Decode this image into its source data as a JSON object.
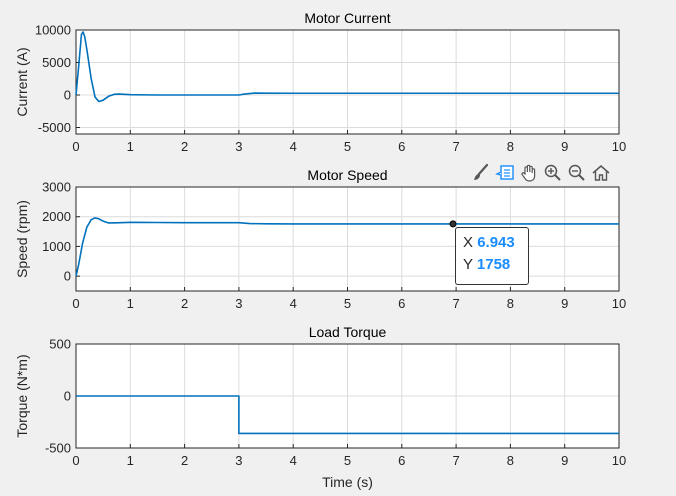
{
  "chart_data": [
    {
      "type": "line",
      "title": "Motor Current",
      "xlabel": "",
      "ylabel": "Current (A)",
      "xlim": [
        0,
        10
      ],
      "ylim": [
        -6000,
        10000
      ],
      "xticks": [
        "0",
        "1",
        "2",
        "3",
        "4",
        "5",
        "6",
        "7",
        "8",
        "9",
        "10"
      ],
      "yticks": [
        {
          "v": 10000,
          "label": "10000"
        },
        {
          "v": 5000,
          "label": "5000"
        },
        {
          "v": 0,
          "label": "0"
        },
        {
          "v": -5000,
          "label": "-5000"
        }
      ],
      "grid": true,
      "series": [
        {
          "color": "#0072bd",
          "points": [
            [
              0,
              0
            ],
            [
              0.05,
              4500
            ],
            [
              0.1,
              9300
            ],
            [
              0.13,
              9700
            ],
            [
              0.16,
              9000
            ],
            [
              0.2,
              7000
            ],
            [
              0.28,
              2500
            ],
            [
              0.35,
              -300
            ],
            [
              0.42,
              -1000
            ],
            [
              0.5,
              -800
            ],
            [
              0.6,
              -200
            ],
            [
              0.7,
              100
            ],
            [
              0.8,
              150
            ],
            [
              1.0,
              50
            ],
            [
              1.5,
              0
            ],
            [
              2.0,
              0
            ],
            [
              2.5,
              0
            ],
            [
              3.0,
              0
            ],
            [
              3.1,
              150
            ],
            [
              3.3,
              300
            ],
            [
              3.5,
              280
            ],
            [
              4,
              270
            ],
            [
              5,
              270
            ],
            [
              6,
              270
            ],
            [
              7,
              270
            ],
            [
              8,
              270
            ],
            [
              9,
              270
            ],
            [
              10,
              270
            ]
          ]
        }
      ]
    },
    {
      "type": "line",
      "title": "Motor Speed",
      "xlabel": "",
      "ylabel": "Speed (rpm)",
      "xlim": [
        0,
        10
      ],
      "ylim": [
        -500,
        3000
      ],
      "xticks": [
        "0",
        "1",
        "2",
        "3",
        "4",
        "5",
        "6",
        "7",
        "8",
        "9",
        "10"
      ],
      "yticks": [
        {
          "v": 3000,
          "label": "3000"
        },
        {
          "v": 2000,
          "label": "2000"
        },
        {
          "v": 1000,
          "label": "1000"
        },
        {
          "v": 0,
          "label": "0"
        }
      ],
      "grid": true,
      "series": [
        {
          "color": "#0072bd",
          "points": [
            [
              0,
              0
            ],
            [
              0.05,
              400
            ],
            [
              0.12,
              1100
            ],
            [
              0.2,
              1650
            ],
            [
              0.28,
              1900
            ],
            [
              0.35,
              1960
            ],
            [
              0.42,
              1930
            ],
            [
              0.5,
              1850
            ],
            [
              0.6,
              1790
            ],
            [
              0.75,
              1795
            ],
            [
              1.0,
              1810
            ],
            [
              1.5,
              1805
            ],
            [
              2.0,
              1800
            ],
            [
              2.5,
              1800
            ],
            [
              3.0,
              1800
            ],
            [
              3.2,
              1770
            ],
            [
              3.5,
              1760
            ],
            [
              4,
              1758
            ],
            [
              5,
              1758
            ],
            [
              6,
              1758
            ],
            [
              6.943,
              1758
            ],
            [
              8,
              1758
            ],
            [
              9,
              1758
            ],
            [
              10,
              1758
            ]
          ]
        }
      ]
    },
    {
      "type": "line",
      "title": "Load Torque",
      "xlabel": "Time (s)",
      "ylabel": "Torque (N*m)",
      "xlim": [
        0,
        10
      ],
      "ylim": [
        -500,
        500
      ],
      "xticks": [
        "0",
        "1",
        "2",
        "3",
        "4",
        "5",
        "6",
        "7",
        "8",
        "9",
        "10"
      ],
      "yticks": [
        {
          "v": 500,
          "label": "500"
        },
        {
          "v": 0,
          "label": "0"
        },
        {
          "v": -500,
          "label": "-500"
        }
      ],
      "grid": true,
      "series": [
        {
          "color": "#0072bd",
          "points": [
            [
              0,
              0
            ],
            [
              3,
              0
            ],
            [
              3,
              -360
            ],
            [
              10,
              -360
            ]
          ]
        }
      ]
    }
  ],
  "datatip": {
    "x_label": "X",
    "x_value": "6.943",
    "y_label": "Y",
    "y_value": "1758",
    "x": 6.943,
    "y": 1758
  },
  "toolbar": {
    "icons": [
      "brush-icon",
      "datatip-icon",
      "pan-hand-icon",
      "zoom-in-icon",
      "zoom-out-icon",
      "home-icon"
    ]
  },
  "colors": {
    "line": "#0072bd",
    "axes_bg": "#ffffff",
    "figure_bg": "#f0f0f0",
    "grid": "#dcdcdc",
    "text": "#262626"
  }
}
